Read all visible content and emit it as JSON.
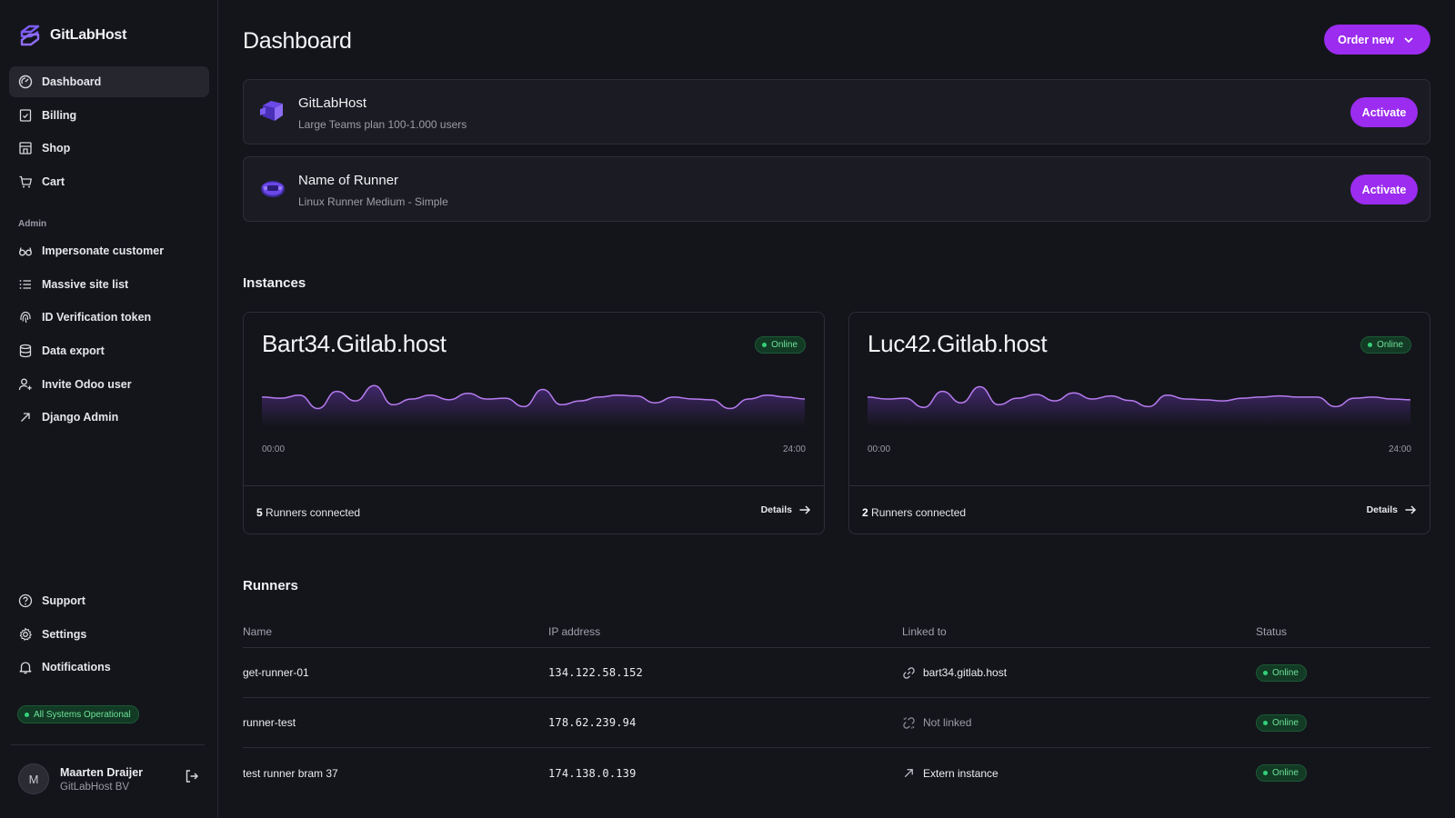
{
  "app": {
    "brand": "GitLabHost"
  },
  "sidebar": {
    "main_items": [
      {
        "label": "Dashboard",
        "icon": "dashboard-icon",
        "active": true
      },
      {
        "label": "Billing",
        "icon": "billing-icon"
      },
      {
        "label": "Shop",
        "icon": "shop-icon"
      },
      {
        "label": "Cart",
        "icon": "cart-icon"
      }
    ],
    "admin_label": "Admin",
    "admin_items": [
      {
        "label": "Impersonate customer",
        "icon": "glasses-icon"
      },
      {
        "label": "Massive site list",
        "icon": "list-icon"
      },
      {
        "label": "ID Verification token",
        "icon": "fingerprint-icon"
      },
      {
        "label": "Data export",
        "icon": "database-icon"
      },
      {
        "label": "Invite Odoo user",
        "icon": "user-plus-icon"
      },
      {
        "label": "Django Admin",
        "icon": "arrow-up-right-icon"
      }
    ],
    "bottom_items": [
      {
        "label": "Support",
        "icon": "help-circle-icon"
      },
      {
        "label": "Settings",
        "icon": "gear-icon"
      },
      {
        "label": "Notifications",
        "icon": "bell-icon"
      }
    ],
    "system_status": "All Systems Operational",
    "user": {
      "initial": "M",
      "name": "Maarten Draijer",
      "org": "GitLabHost BV"
    }
  },
  "header": {
    "title": "Dashboard",
    "order_button": "Order new"
  },
  "products": [
    {
      "title": "GitLabHost",
      "subtitle": "Large Teams plan 100-1.000 users",
      "button": "Activate"
    },
    {
      "title": "Name of Runner",
      "subtitle": "Linux Runner Medium - Simple",
      "button": "Activate"
    }
  ],
  "instances_title": "Instances",
  "instances": [
    {
      "name": "Bart34.Gitlab.host",
      "status": "Online",
      "time_start": "00:00",
      "time_end": "24:00",
      "runners_count": "5",
      "runners_label": "Runners connected",
      "details": "Details",
      "activity": [
        0.55,
        0.52,
        0.6,
        0.25,
        0.7,
        0.45,
        0.85,
        0.35,
        0.5,
        0.6,
        0.48,
        0.65,
        0.5,
        0.52,
        0.3,
        0.75,
        0.35,
        0.45,
        0.55,
        0.6,
        0.58,
        0.4,
        0.55,
        0.5,
        0.48,
        0.25,
        0.5,
        0.6,
        0.55,
        0.5
      ]
    },
    {
      "name": "Luc42.Gitlab.host",
      "status": "Online",
      "time_start": "00:00",
      "time_end": "24:00",
      "runners_count": "2",
      "runners_label": "Runners connected",
      "details": "Details",
      "activity": [
        0.55,
        0.5,
        0.52,
        0.28,
        0.7,
        0.4,
        0.82,
        0.35,
        0.52,
        0.62,
        0.45,
        0.66,
        0.5,
        0.58,
        0.46,
        0.3,
        0.6,
        0.5,
        0.48,
        0.45,
        0.52,
        0.55,
        0.58,
        0.55,
        0.55,
        0.3,
        0.52,
        0.55,
        0.5,
        0.48
      ]
    }
  ],
  "runners_title": "Runners",
  "runners": {
    "columns": [
      "Name",
      "IP address",
      "Linked to",
      "Status"
    ],
    "rows": [
      {
        "name": "get-runner-01",
        "ip": "134.122.58.152",
        "linked": "bart34.gitlab.host",
        "link_icon": "link-icon",
        "linked_muted": false,
        "status": "Online"
      },
      {
        "name": "runner-test",
        "ip": "178.62.239.94",
        "linked": "Not linked",
        "link_icon": "unlink-icon",
        "linked_muted": true,
        "status": "Online"
      },
      {
        "name": "test runner bram 37",
        "ip": "174.138.0.139",
        "linked": "Extern instance",
        "link_icon": "arrow-up-right-icon",
        "linked_muted": false,
        "status": "Online"
      }
    ]
  },
  "colors": {
    "accent": "#9b2cf0",
    "online": "#35d07a",
    "chart_line": "#b77cf0"
  }
}
